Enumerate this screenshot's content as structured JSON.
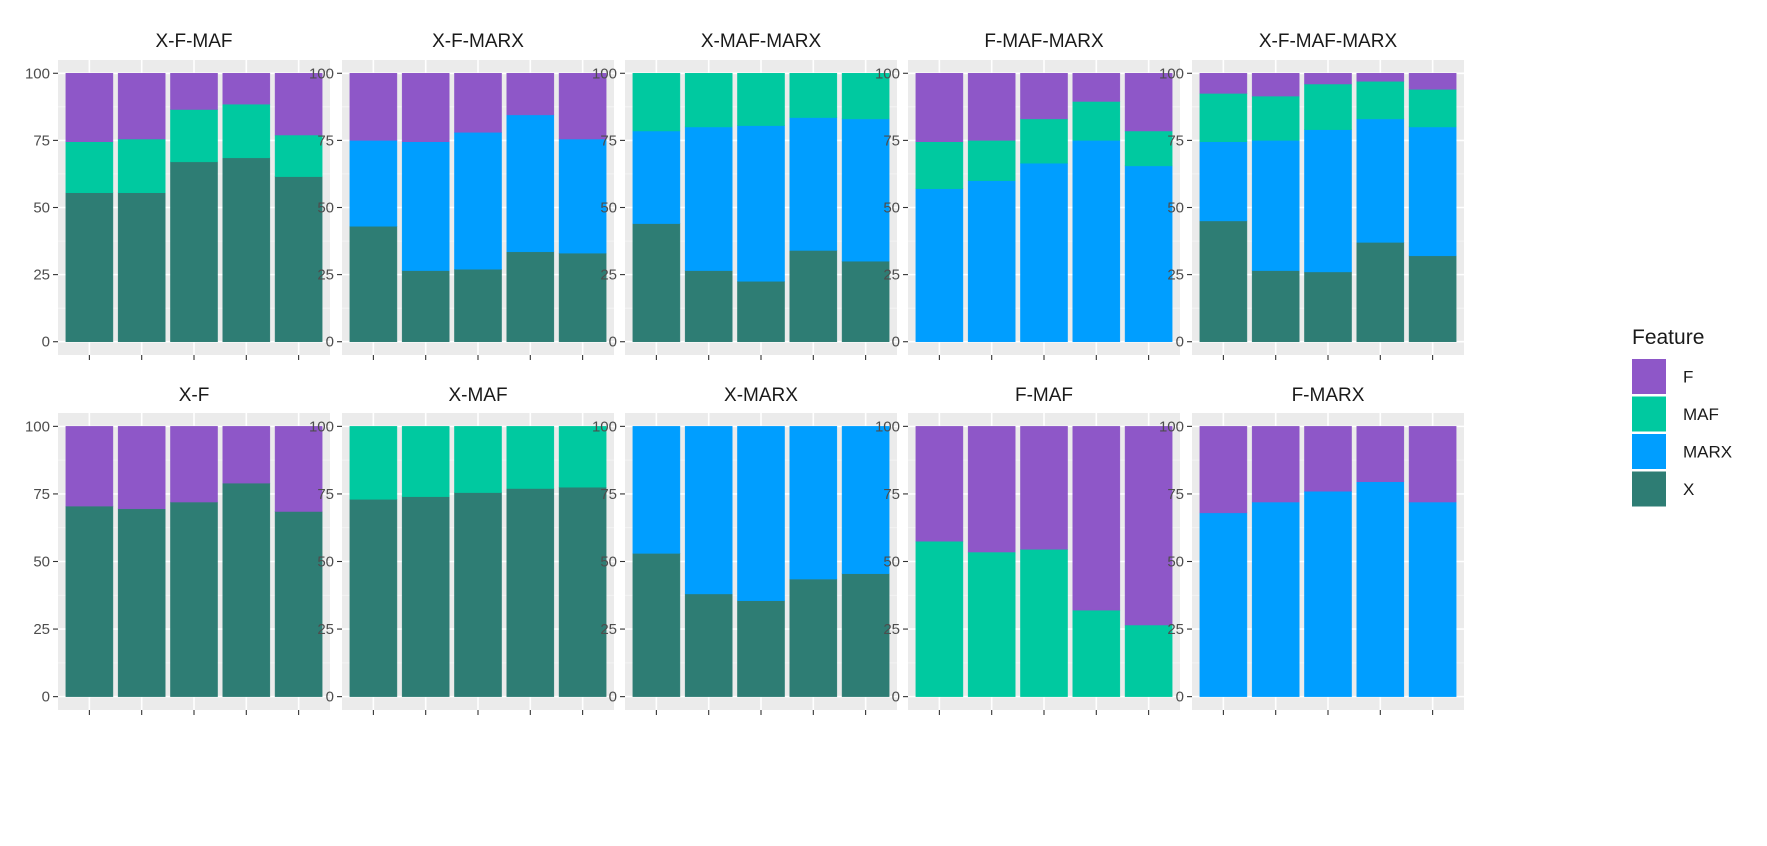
{
  "chart_data": {
    "type": "bar",
    "stacked": true,
    "categories": [
      "1",
      "2",
      "3",
      "4",
      "5"
    ],
    "category_labels_shown": false,
    "ylim": [
      0,
      100
    ],
    "yticks": [
      0,
      25,
      50,
      75,
      100
    ],
    "grid": true,
    "legend": {
      "title": "Feature",
      "position": "right",
      "items": [
        {
          "name": "F",
          "color": "#8E57C8"
        },
        {
          "name": "MAF",
          "color": "#00C9A0"
        },
        {
          "name": "MARX",
          "color": "#009EFF"
        },
        {
          "name": "X",
          "color": "#2E7D74"
        }
      ]
    },
    "stack_order_bottom_to_top": [
      "X",
      "MARX",
      "MAF",
      "F"
    ],
    "panels": [
      {
        "title": "X-F-MAF",
        "series": [
          {
            "name": "X",
            "values": [
              55.5,
              55.5,
              67,
              68.5,
              61.5
            ]
          },
          {
            "name": "MAF",
            "values": [
              19,
              20,
              19.5,
              20,
              15.5
            ]
          },
          {
            "name": "F",
            "values": [
              25.5,
              24.5,
              13.5,
              11.5,
              23
            ]
          }
        ]
      },
      {
        "title": "X-F-MARX",
        "series": [
          {
            "name": "X",
            "values": [
              43,
              26.5,
              27,
              33.5,
              33
            ]
          },
          {
            "name": "MARX",
            "values": [
              32,
              48,
              51,
              51,
              42.5
            ]
          },
          {
            "name": "F",
            "values": [
              25,
              25.5,
              22,
              15.5,
              24.5
            ]
          }
        ]
      },
      {
        "title": "X-MAF-MARX",
        "series": [
          {
            "name": "X",
            "values": [
              44,
              26.5,
              22.5,
              34,
              30
            ]
          },
          {
            "name": "MARX",
            "values": [
              34.5,
              53.5,
              58,
              49.5,
              53
            ]
          },
          {
            "name": "MAF",
            "values": [
              21.5,
              20,
              19.5,
              16.5,
              17
            ]
          }
        ]
      },
      {
        "title": "F-MAF-MARX",
        "series": [
          {
            "name": "MARX",
            "values": [
              57,
              60,
              66.5,
              75,
              65.5
            ]
          },
          {
            "name": "MAF",
            "values": [
              17.5,
              15,
              16.5,
              14.5,
              13
            ]
          },
          {
            "name": "F",
            "values": [
              25.5,
              25,
              17,
              10.5,
              21.5
            ]
          }
        ]
      },
      {
        "title": "X-F-MAF-MARX",
        "series": [
          {
            "name": "X",
            "values": [
              45,
              26.5,
              26,
              37,
              32
            ]
          },
          {
            "name": "MARX",
            "values": [
              29.5,
              48.5,
              53,
              46,
              48
            ]
          },
          {
            "name": "MAF",
            "values": [
              18,
              16.5,
              17,
              14,
              14
            ]
          },
          {
            "name": "F",
            "values": [
              7.5,
              8.5,
              4,
              3,
              6
            ]
          }
        ]
      },
      {
        "title": "X-F",
        "series": [
          {
            "name": "X",
            "values": [
              70.5,
              69.5,
              72,
              79,
              68.5
            ]
          },
          {
            "name": "F",
            "values": [
              29.5,
              30.5,
              28,
              21,
              31.5
            ]
          }
        ]
      },
      {
        "title": "X-MAF",
        "series": [
          {
            "name": "X",
            "values": [
              73,
              74,
              75.5,
              77,
              77.5
            ]
          },
          {
            "name": "MAF",
            "values": [
              27,
              26,
              24.5,
              23,
              22.5
            ]
          }
        ]
      },
      {
        "title": "X-MARX",
        "series": [
          {
            "name": "X",
            "values": [
              53,
              38,
              35.5,
              43.5,
              45.5
            ]
          },
          {
            "name": "MARX",
            "values": [
              47,
              62,
              64.5,
              56.5,
              54.5
            ]
          }
        ]
      },
      {
        "title": "F-MAF",
        "series": [
          {
            "name": "MAF",
            "values": [
              57.5,
              53.5,
              54.5,
              32,
              26.5
            ]
          },
          {
            "name": "F",
            "values": [
              42.5,
              46.5,
              45.5,
              68,
              73.5
            ]
          }
        ]
      },
      {
        "title": "F-MARX",
        "series": [
          {
            "name": "MARX",
            "values": [
              68,
              72,
              76,
              79.5,
              72
            ]
          },
          {
            "name": "F",
            "values": [
              32,
              28,
              24,
              20.5,
              28
            ]
          }
        ]
      }
    ]
  }
}
